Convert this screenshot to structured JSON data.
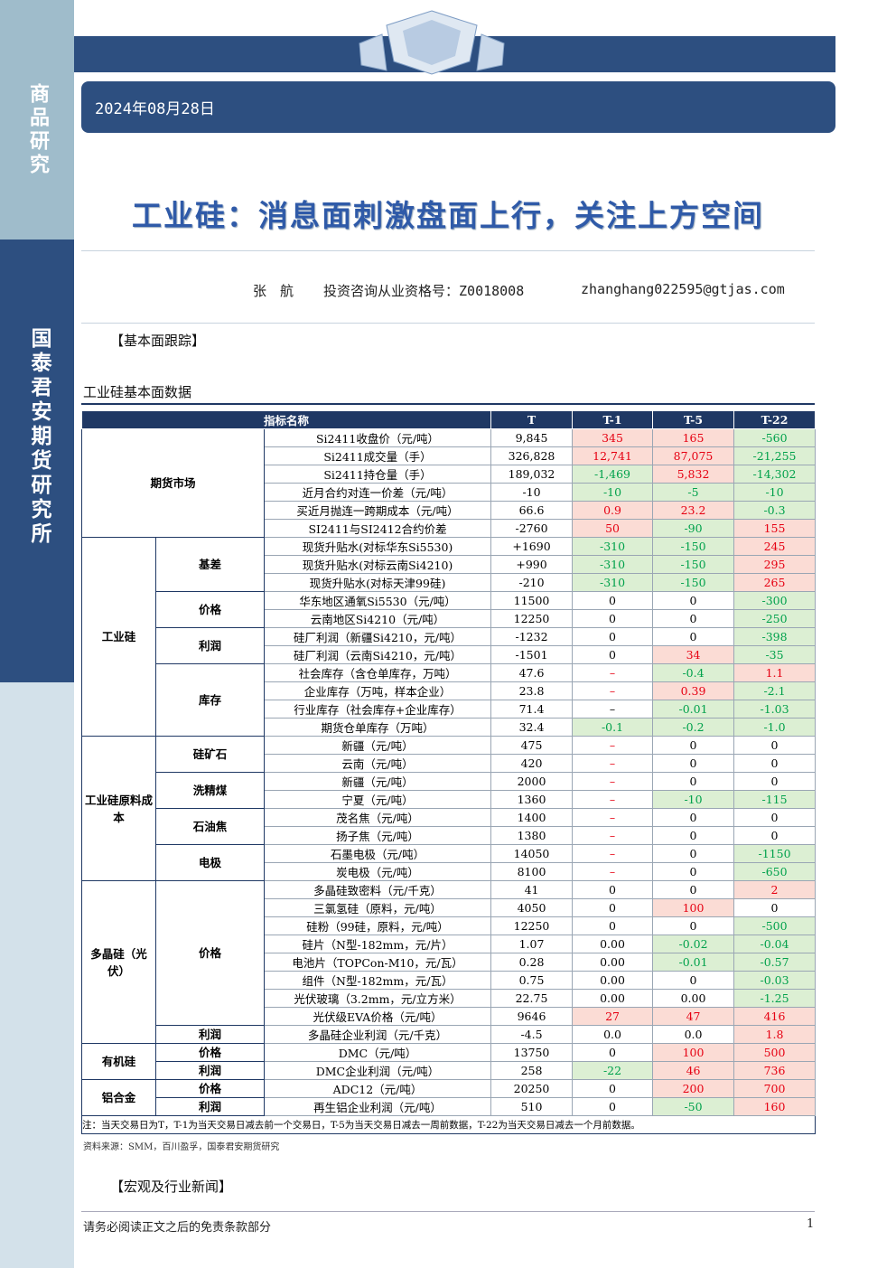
{
  "sidebar": {
    "top": "商品研究",
    "bottom": "国泰君安期货研究所"
  },
  "header": {
    "date": "2024年08月28日",
    "title": "工业硅：消息面刺激盘面上行，关注上方空间"
  },
  "author": {
    "name": "张　航",
    "license": "投资咨询从业资格号：Z0018008",
    "email": "zhanghang022595@gtjas.com"
  },
  "section1": "【基本面跟踪】",
  "table_title": "工业硅基本面数据",
  "table": {
    "headers": [
      "指标名称",
      "T",
      "T-1",
      "T-5",
      "T-22"
    ],
    "groups": [
      {
        "label": "期货市场",
        "rows": [
          {
            "cells": [
              "Si2411收盘价（元/吨）",
              "9,845",
              "345",
              "165",
              "-560"
            ],
            "tones": [
              "red",
              "red",
              "green"
            ]
          },
          {
            "cells": [
              "Si2411成交量（手）",
              "326,828",
              "12,741",
              "87,075",
              "-21,255"
            ],
            "tones": [
              "red",
              "red",
              "green"
            ]
          },
          {
            "cells": [
              "Si2411持仓量（手）",
              "189,032",
              "-1,469",
              "5,832",
              "-14,302"
            ],
            "tones": [
              "green",
              "red",
              "green"
            ]
          },
          {
            "cells": [
              "近月合约对连一价差（元/吨）",
              "-10",
              "-10",
              "-5",
              "-10"
            ],
            "tones": [
              "green",
              "green",
              "green"
            ]
          },
          {
            "cells": [
              "买近月抛连一跨期成本（元/吨）",
              "66.6",
              "0.9",
              "23.2",
              "-0.3"
            ],
            "tones": [
              "red",
              "red",
              "green"
            ]
          },
          {
            "cells": [
              "SI2411与SI2412合约价差",
              "-2760",
              "50",
              "-90",
              "155"
            ],
            "tones": [
              "red",
              "green",
              "red"
            ]
          }
        ]
      },
      {
        "label": "工业硅",
        "subgroups": [
          {
            "label": "基差",
            "rows": [
              {
                "cells": [
                  "现货升贴水(对标华东Si5530)",
                  "+1690",
                  "-310",
                  "-150",
                  "245"
                ],
                "tones": [
                  "green",
                  "green",
                  "red"
                ]
              },
              {
                "cells": [
                  "现货升贴水(对标云南Si4210)",
                  "+990",
                  "-310",
                  "-150",
                  "295"
                ],
                "tones": [
                  "green",
                  "green",
                  "red"
                ]
              },
              {
                "cells": [
                  "现货升贴水(对标天津99硅)",
                  "-210",
                  "-310",
                  "-150",
                  "265"
                ],
                "tones": [
                  "green",
                  "green",
                  "red"
                ]
              }
            ]
          },
          {
            "label": "价格",
            "rows": [
              {
                "cells": [
                  "华东地区通氧Si5530（元/吨）",
                  "11500",
                  "0",
                  "0",
                  "-300"
                ],
                "tones": [
                  null,
                  null,
                  "green"
                ]
              },
              {
                "cells": [
                  "云南地区Si4210（元/吨）",
                  "12250",
                  "0",
                  "0",
                  "-250"
                ],
                "tones": [
                  null,
                  null,
                  "green"
                ]
              }
            ]
          },
          {
            "label": "利润",
            "rows": [
              {
                "cells": [
                  "硅厂利润（新疆Si4210，元/吨）",
                  "-1232",
                  "0",
                  "0",
                  "-398"
                ],
                "tones": [
                  null,
                  null,
                  "green"
                ]
              },
              {
                "cells": [
                  "硅厂利润（云南Si4210，元/吨）",
                  "-1501",
                  "0",
                  "34",
                  "-35"
                ],
                "tones": [
                  null,
                  "red",
                  "green"
                ]
              }
            ]
          },
          {
            "label": "库存",
            "rows": [
              {
                "cells": [
                  "社会库存（含仓单库存，万吨）",
                  "47.6",
                  "–",
                  "-0.4",
                  "1.1"
                ],
                "tones": [
                  "red-text",
                  "green",
                  "red"
                ]
              },
              {
                "cells": [
                  "企业库存（万吨，样本企业）",
                  "23.8",
                  "–",
                  "0.39",
                  "-2.1"
                ],
                "tones": [
                  "red-text",
                  "red",
                  "green"
                ]
              },
              {
                "cells": [
                  "行业库存（社会库存+企业库存）",
                  "71.4",
                  "–",
                  "-0.01",
                  "-1.03"
                ],
                "tones": [
                  null,
                  "green",
                  "green"
                ]
              },
              {
                "cells": [
                  "期货仓单库存（万吨）",
                  "32.4",
                  "-0.1",
                  "-0.2",
                  "-1.0"
                ],
                "tones": [
                  "green",
                  "green",
                  "green"
                ]
              }
            ]
          }
        ]
      },
      {
        "label": "工业硅原料成本",
        "subgroups": [
          {
            "label": "硅矿石",
            "rows": [
              {
                "cells": [
                  "新疆（元/吨）",
                  "475",
                  "–",
                  "0",
                  "0"
                ],
                "tones": [
                  "red-text",
                  null,
                  null
                ]
              },
              {
                "cells": [
                  "云南（元/吨）",
                  "420",
                  "–",
                  "0",
                  "0"
                ],
                "tones": [
                  "red-text",
                  null,
                  null
                ]
              }
            ]
          },
          {
            "label": "洗精煤",
            "rows": [
              {
                "cells": [
                  "新疆（元/吨）",
                  "2000",
                  "–",
                  "0",
                  "0"
                ],
                "tones": [
                  "red-text",
                  null,
                  null
                ]
              },
              {
                "cells": [
                  "宁夏（元/吨）",
                  "1360",
                  "–",
                  "-10",
                  "-115"
                ],
                "tones": [
                  "red-text",
                  "green",
                  "green"
                ]
              }
            ]
          },
          {
            "label": "石油焦",
            "rows": [
              {
                "cells": [
                  "茂名焦（元/吨）",
                  "1400",
                  "–",
                  "0",
                  "0"
                ],
                "tones": [
                  "red-text",
                  null,
                  null
                ]
              },
              {
                "cells": [
                  "扬子焦（元/吨）",
                  "1380",
                  "–",
                  "0",
                  "0"
                ],
                "tones": [
                  "red-text",
                  null,
                  null
                ]
              }
            ]
          },
          {
            "label": "电极",
            "rows": [
              {
                "cells": [
                  "石墨电极（元/吨）",
                  "14050",
                  "–",
                  "0",
                  "-1150"
                ],
                "tones": [
                  "red-text",
                  null,
                  "green"
                ]
              },
              {
                "cells": [
                  "炭电极（元/吨）",
                  "8100",
                  "–",
                  "0",
                  "-650"
                ],
                "tones": [
                  "red-text",
                  null,
                  "green"
                ]
              }
            ]
          }
        ]
      },
      {
        "label": "多晶硅（光伏）",
        "subgroups": [
          {
            "label": "价格",
            "rows": [
              {
                "cells": [
                  "多晶硅致密料（元/千克）",
                  "41",
                  "0",
                  "0",
                  "2"
                ],
                "tones": [
                  null,
                  null,
                  "red"
                ]
              },
              {
                "cells": [
                  "三氯氢硅（原料，元/吨）",
                  "4050",
                  "0",
                  "100",
                  "0"
                ],
                "tones": [
                  null,
                  "red",
                  null
                ]
              },
              {
                "cells": [
                  "硅粉（99硅，原料，元/吨）",
                  "12250",
                  "0",
                  "0",
                  "-500"
                ],
                "tones": [
                  null,
                  null,
                  "green"
                ]
              },
              {
                "cells": [
                  "硅片（N型-182mm，元/片）",
                  "1.07",
                  "0.00",
                  "-0.02",
                  "-0.04"
                ],
                "tones": [
                  null,
                  "green",
                  "green"
                ]
              },
              {
                "cells": [
                  "电池片（TOPCon-M10，元/瓦）",
                  "0.28",
                  "0.00",
                  "-0.01",
                  "-0.57"
                ],
                "tones": [
                  null,
                  "green",
                  "green"
                ]
              },
              {
                "cells": [
                  "组件（N型-182mm，元/瓦）",
                  "0.75",
                  "0.00",
                  "0",
                  "-0.03"
                ],
                "tones": [
                  null,
                  null,
                  "green"
                ]
              },
              {
                "cells": [
                  "光伏玻璃（3.2mm，元/立方米）",
                  "22.75",
                  "0.00",
                  "0.00",
                  "-1.25"
                ],
                "tones": [
                  null,
                  null,
                  "green"
                ]
              },
              {
                "cells": [
                  "光伏级EVA价格（元/吨）",
                  "9646",
                  "27",
                  "47",
                  "416"
                ],
                "tones": [
                  "red",
                  "red",
                  "red"
                ]
              }
            ]
          },
          {
            "label": "利润",
            "rows": [
              {
                "cells": [
                  "多晶硅企业利润（元/千克）",
                  "-4.5",
                  "0.0",
                  "0.0",
                  "1.8"
                ],
                "tones": [
                  null,
                  null,
                  "red"
                ]
              }
            ]
          }
        ]
      },
      {
        "label": "有机硅",
        "subgroups": [
          {
            "label": "价格",
            "rows": [
              {
                "cells": [
                  "DMC（元/吨）",
                  "13750",
                  "0",
                  "100",
                  "500"
                ],
                "tones": [
                  null,
                  "red",
                  "red"
                ]
              }
            ]
          },
          {
            "label": "利润",
            "rows": [
              {
                "cells": [
                  "DMC企业利润（元/吨）",
                  "258",
                  "-22",
                  "46",
                  "736"
                ],
                "tones": [
                  "green",
                  "red",
                  "red"
                ]
              }
            ]
          }
        ]
      },
      {
        "label": "铝合金",
        "subgroups": [
          {
            "label": "价格",
            "rows": [
              {
                "cells": [
                  "ADC12（元/吨）",
                  "20250",
                  "0",
                  "200",
                  "700"
                ],
                "tones": [
                  null,
                  "red",
                  "red"
                ]
              }
            ]
          },
          {
            "label": "利润",
            "rows": [
              {
                "cells": [
                  "再生铝企业利润（元/吨）",
                  "510",
                  "0",
                  "-50",
                  "160"
                ],
                "tones": [
                  null,
                  "green",
                  "red"
                ]
              }
            ]
          }
        ]
      }
    ],
    "note": "注：当天交易日为T，T-1为当天交易日减去前一个交易日，T-5为当天交易日减去一周前数据，T-22为当天交易日减去一个月前数据。"
  },
  "source": "资料来源：SMM，百川盈孚，国泰君安期货研究",
  "section2": "【宏观及行业新闻】",
  "footer": {
    "disclaimer": "请务必阅读正文之后的免责条款部分",
    "page": "1"
  }
}
